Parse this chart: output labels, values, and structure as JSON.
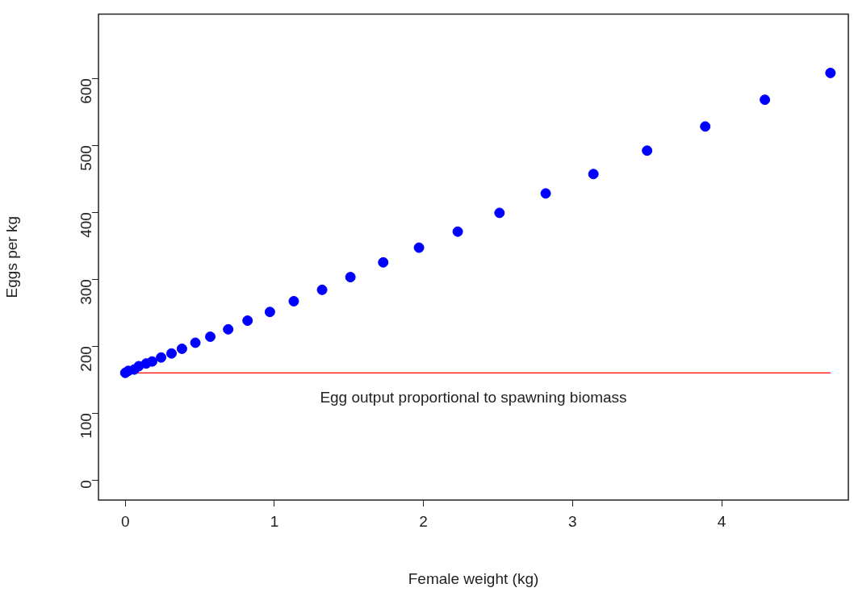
{
  "chart_data": {
    "type": "scatter",
    "xlabel": "Female weight (kg)",
    "ylabel": "Eggs per kg",
    "xlim": [
      -0.18,
      4.85
    ],
    "ylim": [
      -30,
      696
    ],
    "xticks": [
      0,
      1,
      2,
      3,
      4
    ],
    "yticks": [
      0,
      100,
      200,
      300,
      400,
      500,
      600
    ],
    "grid": false,
    "legend": false,
    "series": [
      {
        "color": "#0000ff",
        "marker": "circle",
        "x": [
          0,
          0.02,
          0.06,
          0.09,
          0.14,
          0.18,
          0.24,
          0.31,
          0.38,
          0.47,
          0.57,
          0.69,
          0.82,
          0.97,
          1.13,
          1.32,
          1.51,
          1.73,
          1.97,
          2.23,
          2.51,
          2.82,
          3.14,
          3.5,
          3.89,
          4.29,
          4.73
        ],
        "values": [
          160,
          163,
          165,
          170,
          174,
          177,
          183,
          189,
          196,
          205,
          214,
          225,
          238,
          251,
          267,
          284,
          303,
          325,
          347,
          371,
          399,
          428,
          457,
          492,
          528,
          568,
          608
        ]
      },
      {
        "type": "line",
        "color": "#ff0000",
        "x": [
          0,
          4.73
        ],
        "values": [
          160,
          160
        ]
      }
    ],
    "annotations": [
      "Egg output proportional to spawning biomass"
    ]
  }
}
